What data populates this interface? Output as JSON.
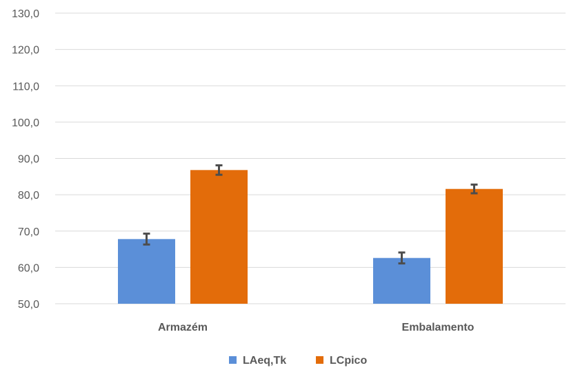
{
  "chart_data": {
    "type": "bar",
    "categories": [
      "Armazém",
      "Embalamento"
    ],
    "series": [
      {
        "name": "LAeq,Tk",
        "values": [
          67.8,
          62.6
        ],
        "errors": [
          1.5,
          1.5
        ],
        "color": "#5b8fd8"
      },
      {
        "name": "LCpico",
        "values": [
          86.8,
          81.6
        ],
        "errors": [
          1.3,
          1.2
        ],
        "color": "#e36c0a"
      }
    ],
    "ylim": [
      50,
      130
    ],
    "yticks": [
      "50,0",
      "60,0",
      "70,0",
      "80,0",
      "90,0",
      "100,0",
      "110,0",
      "120,0",
      "130,0"
    ],
    "title": "",
    "xlabel": "",
    "ylabel": "",
    "grid": true,
    "legend_position": "bottom",
    "error_bar_color": "#4d4d4d"
  }
}
